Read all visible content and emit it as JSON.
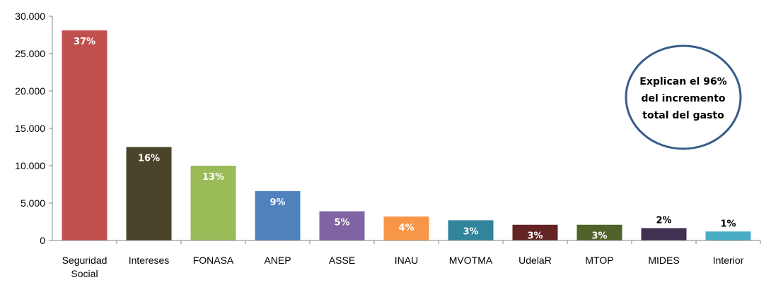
{
  "chart_data": {
    "type": "bar",
    "title": "",
    "xlabel": "",
    "ylabel": "",
    "ylim": [
      0,
      30000
    ],
    "yticks": [
      "0",
      "5.000",
      "10.000",
      "15.000",
      "20.000",
      "25.000",
      "30.000"
    ],
    "ytick_values": [
      0,
      5000,
      10000,
      15000,
      20000,
      25000,
      30000
    ],
    "grid": false,
    "categories": [
      [
        "Seguridad",
        "Social"
      ],
      [
        "Intereses"
      ],
      [
        "FONASA"
      ],
      [
        "ANEP"
      ],
      [
        "ASSE"
      ],
      [
        "INAU"
      ],
      [
        "MVOTMA"
      ],
      [
        "UdelaR"
      ],
      [
        "MTOP"
      ],
      [
        "MIDES"
      ],
      [
        "Interior"
      ]
    ],
    "values": [
      28100,
      12500,
      10000,
      6600,
      3900,
      3200,
      2700,
      2100,
      2100,
      1650,
      1200
    ],
    "data_labels": [
      "37%",
      "16%",
      "13%",
      "9%",
      "5%",
      "4%",
      "3%",
      "3%",
      "3%",
      "2%",
      "1%"
    ],
    "label_inside": [
      true,
      true,
      true,
      true,
      true,
      true,
      true,
      true,
      true,
      false,
      false
    ],
    "colors": [
      "#c0504d",
      "#4a452a",
      "#9bbb59",
      "#4f81bd",
      "#8064a2",
      "#f79646",
      "#31849b",
      "#632423",
      "#4f6228",
      "#3f3151",
      "#4bacc6"
    ],
    "annotation": {
      "lines": [
        "Explican el 96%",
        "del incremento",
        "total del gasto"
      ],
      "border_color": "#385d8a"
    }
  }
}
